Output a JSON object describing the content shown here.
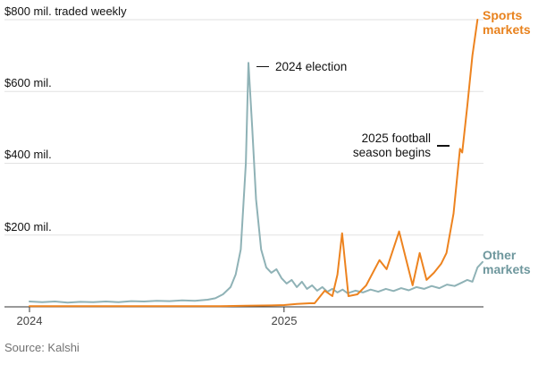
{
  "chart_data": {
    "type": "line",
    "title": "",
    "ylabel": "$ mil. traded weekly",
    "xlim": [
      2024.0,
      2025.78
    ],
    "ylim": [
      0,
      800
    ],
    "grid": "horizontal",
    "legend_position": "right-of-line-ends",
    "y_ticks": [
      {
        "value": 800,
        "label": "$800 mil. traded weekly"
      },
      {
        "value": 600,
        "label": "$600 mil."
      },
      {
        "value": 400,
        "label": "$400 mil."
      },
      {
        "value": 200,
        "label": "$200 mil."
      }
    ],
    "x_ticks": [
      {
        "value": 2024.0,
        "label": "2024"
      },
      {
        "value": 2025.0,
        "label": "2025"
      }
    ],
    "series": [
      {
        "name": "Sports markets",
        "color": "#ED831F",
        "x": [
          2024.0,
          2024.2,
          2024.4,
          2024.6,
          2024.75,
          2024.85,
          2024.95,
          2025.0,
          2025.05,
          2025.1,
          2025.12,
          2025.16,
          2025.19,
          2025.21,
          2025.228,
          2025.253,
          2025.288,
          2025.323,
          2025.375,
          2025.403,
          2025.452,
          2025.48,
          2025.505,
          2025.533,
          2025.56,
          2025.589,
          2025.617,
          2025.638,
          2025.666,
          2025.691,
          2025.7,
          2025.72,
          2025.74,
          2025.76
        ],
        "y": [
          2,
          2,
          2,
          2,
          2,
          3,
          4,
          5,
          8,
          10,
          10,
          45,
          30,
          90,
          205,
          30,
          35,
          60,
          130,
          105,
          210,
          130,
          60,
          150,
          75,
          95,
          120,
          150,
          260,
          440,
          430,
          560,
          700,
          800
        ]
      },
      {
        "name": "Other markets",
        "color": "#8FB2B6",
        "x": [
          2024.0,
          2024.05,
          2024.1,
          2024.15,
          2024.2,
          2024.25,
          2024.3,
          2024.35,
          2024.4,
          2024.45,
          2024.5,
          2024.55,
          2024.6,
          2024.65,
          2024.7,
          2024.73,
          2024.76,
          2024.79,
          2024.81,
          2024.83,
          2024.85,
          2024.86,
          2024.875,
          2024.89,
          2024.91,
          2024.93,
          2024.95,
          2024.97,
          2024.99,
          2025.01,
          2025.03,
          2025.05,
          2025.07,
          2025.09,
          2025.11,
          2025.13,
          2025.15,
          2025.17,
          2025.19,
          2025.21,
          2025.23,
          2025.25,
          2025.28,
          2025.31,
          2025.34,
          2025.37,
          2025.4,
          2025.43,
          2025.46,
          2025.49,
          2025.52,
          2025.55,
          2025.58,
          2025.61,
          2025.64,
          2025.67,
          2025.7,
          2025.72,
          2025.74,
          2025.76,
          2025.78
        ],
        "y": [
          15,
          13,
          15,
          12,
          14,
          13,
          15,
          13,
          16,
          15,
          17,
          16,
          18,
          17,
          20,
          24,
          35,
          55,
          90,
          160,
          400,
          680,
          500,
          300,
          160,
          110,
          95,
          105,
          80,
          65,
          75,
          55,
          70,
          50,
          60,
          45,
          55,
          42,
          50,
          40,
          48,
          38,
          45,
          40,
          48,
          42,
          50,
          44,
          52,
          46,
          55,
          50,
          58,
          52,
          62,
          58,
          68,
          75,
          70,
          110,
          125
        ]
      }
    ],
    "annotations": [
      {
        "text": "2024 election",
        "target_series": "Other markets",
        "x": 2024.86,
        "y": 680
      },
      {
        "text": "2025 football\nseason begins",
        "target_series": "Sports markets",
        "x": 2025.67,
        "y": 450
      }
    ]
  },
  "source": "Source: Kalshi"
}
